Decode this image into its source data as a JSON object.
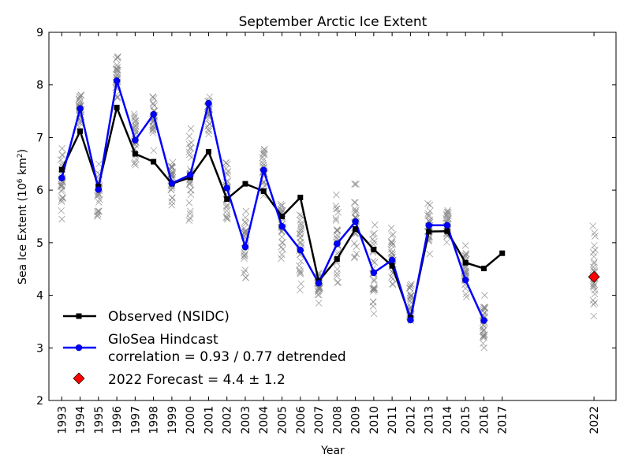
{
  "chart_data": {
    "type": "line",
    "title": "September Arctic Ice Extent",
    "xlabel": "Year",
    "ylabel_main": "Sea Ice Extent (10",
    "ylabel_sup1": "6",
    "ylabel_mid": " km",
    "ylabel_sup2": "2",
    "ylabel_end": ")",
    "xlim": [
      1992.3,
      2023.2
    ],
    "ylim": [
      2,
      9
    ],
    "x_ticks": [
      1993,
      1994,
      1995,
      1996,
      1997,
      1998,
      1999,
      2000,
      2001,
      2002,
      2003,
      2004,
      2005,
      2006,
      2007,
      2008,
      2009,
      2010,
      2011,
      2012,
      2013,
      2014,
      2015,
      2016,
      2017,
      2022
    ],
    "y_ticks": [
      2,
      3,
      4,
      5,
      6,
      7,
      8,
      9
    ],
    "legend_position": "lower-left",
    "legend": {
      "observed": "Observed (NSIDC)",
      "hindcast_line1": "GloSea Hindcast",
      "hindcast_line2": "correlation = 0.93 / 0.77 detrended",
      "forecast": "2022 Forecast = 4.4 ± 1.2"
    },
    "colors": {
      "observed": "#000000",
      "hindcast": "#0000ff",
      "forecast": "#ff0000",
      "ensemble": "#808080"
    },
    "series": [
      {
        "key": "observed",
        "marker": "square",
        "x": [
          1993,
          1994,
          1995,
          1996,
          1997,
          1998,
          1999,
          2000,
          2001,
          2002,
          2003,
          2004,
          2005,
          2006,
          2007,
          2008,
          2009,
          2010,
          2011,
          2012,
          2013,
          2014,
          2015,
          2016,
          2017
        ],
        "values": [
          6.39,
          7.12,
          6.07,
          7.57,
          6.69,
          6.54,
          6.12,
          6.24,
          6.73,
          5.83,
          6.12,
          5.98,
          5.5,
          5.86,
          4.27,
          4.69,
          5.26,
          4.87,
          4.56,
          3.57,
          5.21,
          5.22,
          4.62,
          4.51,
          4.8
        ]
      },
      {
        "key": "hindcast",
        "marker": "circle",
        "x": [
          1993,
          1994,
          1995,
          1996,
          1997,
          1998,
          1999,
          2000,
          2001,
          2002,
          2003,
          2004,
          2005,
          2006,
          2007,
          2008,
          2009,
          2010,
          2011,
          2012,
          2013,
          2014,
          2015,
          2016
        ],
        "values": [
          6.23,
          7.55,
          6.01,
          8.08,
          6.95,
          7.44,
          6.13,
          6.29,
          7.65,
          6.04,
          4.92,
          6.38,
          5.31,
          4.86,
          4.23,
          4.98,
          5.4,
          4.43,
          4.67,
          3.53,
          5.33,
          5.33,
          4.29,
          3.52
        ]
      }
    ],
    "forecast": {
      "x": 2022,
      "value": 4.35,
      "marker": "diamond"
    },
    "ensemble_ranges": [
      {
        "x": 1993,
        "min": 5.1,
        "max": 7.2
      },
      {
        "x": 1994,
        "min": 7.1,
        "max": 7.9
      },
      {
        "x": 1995,
        "min": 5.4,
        "max": 6.6
      },
      {
        "x": 1996,
        "min": 7.5,
        "max": 8.7
      },
      {
        "x": 1997,
        "min": 6.4,
        "max": 7.5
      },
      {
        "x": 1998,
        "min": 6.6,
        "max": 8.0
      },
      {
        "x": 1999,
        "min": 5.6,
        "max": 6.7
      },
      {
        "x": 2000,
        "min": 5.0,
        "max": 7.5
      },
      {
        "x": 2001,
        "min": 7.0,
        "max": 7.9
      },
      {
        "x": 2002,
        "min": 5.3,
        "max": 6.8
      },
      {
        "x": 2003,
        "min": 4.3,
        "max": 5.7
      },
      {
        "x": 2004,
        "min": 5.8,
        "max": 6.9
      },
      {
        "x": 2005,
        "min": 4.6,
        "max": 6.0
      },
      {
        "x": 2006,
        "min": 3.8,
        "max": 6.1
      },
      {
        "x": 2007,
        "min": 3.8,
        "max": 4.5
      },
      {
        "x": 2008,
        "min": 4.0,
        "max": 6.1
      },
      {
        "x": 2009,
        "min": 4.5,
        "max": 6.3
      },
      {
        "x": 2010,
        "min": 3.5,
        "max": 5.5
      },
      {
        "x": 2011,
        "min": 4.0,
        "max": 5.4
      },
      {
        "x": 2012,
        "min": 3.2,
        "max": 4.3
      },
      {
        "x": 2013,
        "min": 4.7,
        "max": 5.9
      },
      {
        "x": 2014,
        "min": 4.9,
        "max": 5.8
      },
      {
        "x": 2015,
        "min": 3.8,
        "max": 5.0
      },
      {
        "x": 2016,
        "min": 2.9,
        "max": 4.1
      },
      {
        "x": 2022,
        "min": 3.5,
        "max": 5.4
      }
    ]
  }
}
